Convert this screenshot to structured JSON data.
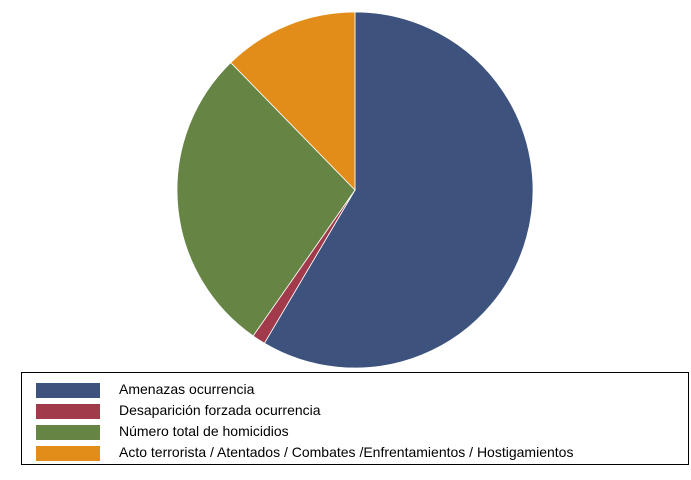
{
  "chart_data": {
    "type": "pie",
    "title": "",
    "start_angle_deg": 0,
    "direction": "clockwise",
    "slices": [
      {
        "label": "Amenazas ocurrencia",
        "value": 58.5,
        "color": "#3d527c"
      },
      {
        "label": "Desaparición forzada ocurrencia",
        "value": 1.2,
        "color": "#a13b4b"
      },
      {
        "label": "Número total de homicidios",
        "value": 28.0,
        "color": "#668444"
      },
      {
        "label": "Acto terrorista / Atentados / Combates /Enfrentamientos / Hostigamientos",
        "value": 12.3,
        "color": "#e28d1a"
      }
    ],
    "legend_position": "bottom",
    "grid": false
  }
}
